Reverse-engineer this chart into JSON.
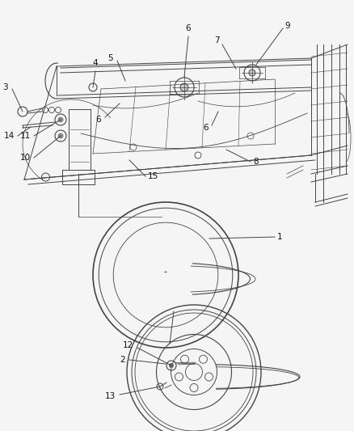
{
  "background_color": "#f5f5f5",
  "line_color": "#444444",
  "text_color": "#111111",
  "fig_width": 4.38,
  "fig_height": 5.33,
  "dpi": 100
}
